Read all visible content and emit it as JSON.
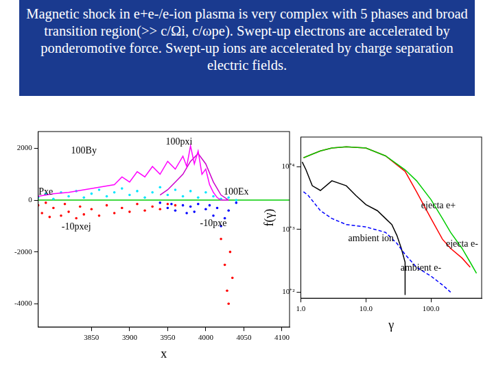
{
  "slide": {
    "title": "Magnetic shock in e+e-/e-ion plasma is very complex with 5 phases and broad transition region(>> c/Ωi, c/ωpe). Swept-up electrons are accelerated by ponderomotive force. Swept-up ions are accelerated by charge separation electric fields."
  },
  "chart_data": [
    {
      "type": "scatter",
      "x_label": "x",
      "xlim": [
        3780,
        4110
      ],
      "xticks": [
        3850,
        3900,
        3950,
        4000,
        4050,
        4100
      ],
      "ylim": [
        -4900,
        2650
      ],
      "yticks": [
        2000,
        0,
        -2000,
        -4000
      ],
      "grid": false,
      "series": [
        {
          "name": "100By",
          "color": "#ff00ff",
          "marker": "none",
          "line_style": "solid",
          "label_at": [
            3840,
            1900
          ],
          "values": [
            [
              3780,
              150
            ],
            [
              3800,
              250
            ],
            [
              3820,
              300
            ],
            [
              3840,
              400
            ],
            [
              3860,
              500
            ],
            [
              3880,
              600
            ],
            [
              3890,
              900
            ],
            [
              3900,
              700
            ],
            [
              3910,
              1100
            ],
            [
              3920,
              900
            ],
            [
              3930,
              1300
            ],
            [
              3940,
              1000
            ],
            [
              3950,
              1500
            ],
            [
              3960,
              1200
            ],
            [
              3970,
              1700
            ],
            [
              3975,
              1300
            ],
            [
              3980,
              2100
            ],
            [
              3985,
              1400
            ],
            [
              3990,
              1900
            ],
            [
              3995,
              1000
            ],
            [
              4000,
              1200
            ],
            [
              4005,
              600
            ],
            [
              4010,
              300
            ],
            [
              4015,
              100
            ],
            [
              4020,
              0
            ],
            [
              4030,
              0
            ]
          ]
        },
        {
          "name": "100pxi",
          "color": "#cc00cc",
          "marker": "none",
          "line_style": "solid",
          "label_at": [
            3965,
            2250
          ],
          "values": [
            [
              3940,
              200
            ],
            [
              3950,
              400
            ],
            [
              3960,
              700
            ],
            [
              3970,
              1000
            ],
            [
              3980,
              1500
            ],
            [
              3990,
              1800
            ],
            [
              4000,
              1400
            ],
            [
              4010,
              700
            ],
            [
              4020,
              200
            ],
            [
              4030,
              0
            ]
          ]
        },
        {
          "name": "100Ex",
          "color": "#00e5ff",
          "marker": "dot",
          "line_style": "none",
          "label_at": [
            4040,
            300
          ],
          "values": [
            [
              3780,
              100
            ],
            [
              3790,
              250
            ],
            [
              3800,
              50
            ],
            [
              3810,
              300
            ],
            [
              3820,
              150
            ],
            [
              3830,
              350
            ],
            [
              3840,
              100
            ],
            [
              3850,
              250
            ],
            [
              3860,
              400
            ],
            [
              3870,
              150
            ],
            [
              3880,
              300
            ],
            [
              3890,
              450
            ],
            [
              3900,
              200
            ],
            [
              3910,
              350
            ],
            [
              3920,
              100
            ],
            [
              3930,
              300
            ],
            [
              3940,
              500
            ],
            [
              3950,
              200
            ],
            [
              3960,
              400
            ],
            [
              3970,
              150
            ],
            [
              3980,
              350
            ],
            [
              3990,
              100
            ],
            [
              4000,
              300
            ],
            [
              4010,
              150
            ],
            [
              4020,
              50
            ],
            [
              4030,
              100
            ],
            [
              4040,
              0
            ]
          ]
        },
        {
          "name": "-10pxej",
          "color": "#ff0000",
          "marker": "dot",
          "line_style": "none",
          "label_at": [
            3830,
            -1050
          ],
          "values": [
            [
              3780,
              -200
            ],
            [
              3785,
              -500
            ],
            [
              3790,
              -100
            ],
            [
              3795,
              -650
            ],
            [
              3800,
              -300
            ],
            [
              3810,
              -600
            ],
            [
              3815,
              -150
            ],
            [
              3820,
              -450
            ],
            [
              3830,
              -700
            ],
            [
              3835,
              -250
            ],
            [
              3840,
              -550
            ],
            [
              3850,
              -350
            ],
            [
              3860,
              -600
            ],
            [
              3870,
              -200
            ],
            [
              3880,
              -500
            ],
            [
              3890,
              -300
            ],
            [
              3900,
              -450
            ],
            [
              3910,
              -150
            ],
            [
              3920,
              -400
            ],
            [
              3930,
              -250
            ],
            [
              3940,
              -350
            ],
            [
              3950,
              -150
            ],
            [
              3960,
              -200
            ],
            [
              4020,
              -1500
            ],
            [
              4025,
              -2500
            ],
            [
              4028,
              -3500
            ],
            [
              4030,
              -4000
            ],
            [
              4032,
              -2000
            ],
            [
              4035,
              -3000
            ]
          ]
        },
        {
          "name": "-10pxe",
          "color": "#0000ff",
          "marker": "dot",
          "line_style": "none",
          "label_at": [
            4010,
            -900
          ],
          "values": [
            [
              3940,
              -100
            ],
            [
              3950,
              -300
            ],
            [
              3955,
              -150
            ],
            [
              3960,
              -400
            ],
            [
              3970,
              -200
            ],
            [
              3975,
              -500
            ],
            [
              3980,
              -250
            ],
            [
              3985,
              -450
            ],
            [
              3990,
              -150
            ],
            [
              4000,
              -350
            ],
            [
              4005,
              -200
            ],
            [
              4010,
              -600
            ],
            [
              4015,
              -300
            ],
            [
              4020,
              -1000
            ],
            [
              4025,
              -700
            ],
            [
              4030,
              -400
            ],
            [
              4040,
              -100
            ]
          ]
        },
        {
          "name": "Pxe",
          "color": "#00cc00",
          "marker": "none",
          "line_style": "solid",
          "label_at": [
            3790,
            300
          ],
          "values": [
            [
              3780,
              0
            ],
            [
              4110,
              0
            ]
          ]
        }
      ]
    },
    {
      "type": "line",
      "log": true,
      "x_label": "γ",
      "y_label": "f(γ)",
      "xlim": [
        1,
        600
      ],
      "xticks": [
        {
          "value": 1,
          "label": "1.0"
        },
        {
          "value": 10,
          "label": "10.0"
        },
        {
          "value": 100,
          "label": "100.0"
        }
      ],
      "ylim": [
        80,
        30000
      ],
      "yticks": [
        {
          "value": 100,
          "label": "10⁺²"
        },
        {
          "value": 1000,
          "label": "10⁺³"
        },
        {
          "value": 10000,
          "label": "10⁺⁴"
        }
      ],
      "grid": false,
      "series": [
        {
          "name": "ejecta e+",
          "color": "#00cc00",
          "marker": "none",
          "line_style": "solid",
          "label_at": [
            130,
            2400
          ],
          "values": [
            [
              1.1,
              14000
            ],
            [
              1.5,
              16000
            ],
            [
              2,
              18000
            ],
            [
              3,
              20000
            ],
            [
              5,
              21000
            ],
            [
              10,
              20000
            ],
            [
              20,
              15000
            ],
            [
              40,
              9000
            ],
            [
              60,
              6000
            ],
            [
              100,
              3000
            ],
            [
              150,
              1500
            ],
            [
              200,
              900
            ],
            [
              300,
              500
            ],
            [
              400,
              300
            ],
            [
              500,
              200
            ]
          ]
        },
        {
          "name": "ejecta e-",
          "color": "#ff0000",
          "marker": "none",
          "line_style": "solid",
          "label_at": [
            300,
            580
          ],
          "values": [
            [
              1.1,
              14000
            ],
            [
              1.5,
              16000
            ],
            [
              2,
              18000
            ],
            [
              3,
              20000
            ],
            [
              5,
              21000
            ],
            [
              10,
              20000
            ],
            [
              20,
              15000
            ],
            [
              40,
              8500
            ],
            [
              60,
              4000
            ],
            [
              100,
              1500
            ],
            [
              150,
              700
            ],
            [
              200,
              500
            ],
            [
              300,
              350
            ],
            [
              400,
              250
            ]
          ]
        },
        {
          "name": "ambient e-",
          "color": "#0000ff",
          "marker": "none",
          "line_style": "dashed",
          "label_at": [
            70,
            240
          ],
          "values": [
            [
              1.1,
              4000
            ],
            [
              1.3,
              3500
            ],
            [
              2,
              2000
            ],
            [
              3,
              1500
            ],
            [
              5,
              1200
            ],
            [
              10,
              1100
            ],
            [
              20,
              900
            ],
            [
              30,
              600
            ],
            [
              40,
              400
            ],
            [
              60,
              250
            ],
            [
              100,
              180
            ],
            [
              150,
              130
            ],
            [
              200,
              100
            ]
          ]
        },
        {
          "name": "ambient ion",
          "color": "#000000",
          "marker": "none",
          "line_style": "solid",
          "label_at": [
            12,
            720
          ],
          "values": [
            [
              1.05,
              12000
            ],
            [
              1.2,
              9000
            ],
            [
              1.5,
              5000
            ],
            [
              2,
              4200
            ],
            [
              3,
              6000
            ],
            [
              5,
              5000
            ],
            [
              7,
              3500
            ],
            [
              10,
              2500
            ],
            [
              15,
              2000
            ],
            [
              20,
              1500
            ],
            [
              25,
              1200
            ],
            [
              30,
              800
            ],
            [
              35,
              500
            ],
            [
              40,
              300
            ],
            [
              40,
              90
            ]
          ]
        }
      ]
    }
  ]
}
